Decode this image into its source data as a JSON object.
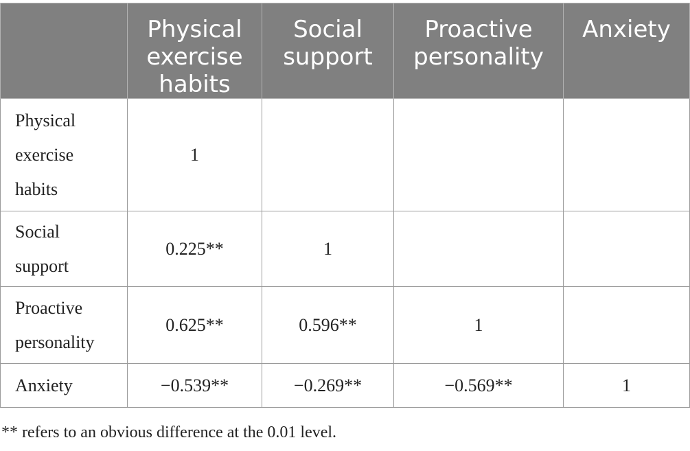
{
  "table": {
    "header": [
      "",
      "Physical exercise habits",
      "Social support",
      "Proactive personality",
      "Anxiety"
    ],
    "rows": [
      {
        "label": "Physical exercise habits",
        "cells": [
          "1",
          "",
          "",
          ""
        ]
      },
      {
        "label": "Social support",
        "cells": [
          "0.225**",
          "1",
          "",
          ""
        ]
      },
      {
        "label": "Proactive personality",
        "cells": [
          "0.625**",
          "0.596**",
          "1",
          ""
        ]
      },
      {
        "label": "Anxiety",
        "cells": [
          "−0.539**",
          "−0.269**",
          "−0.569**",
          "1"
        ]
      }
    ]
  },
  "footnote": "** refers to an obvious difference at the 0.01 level."
}
